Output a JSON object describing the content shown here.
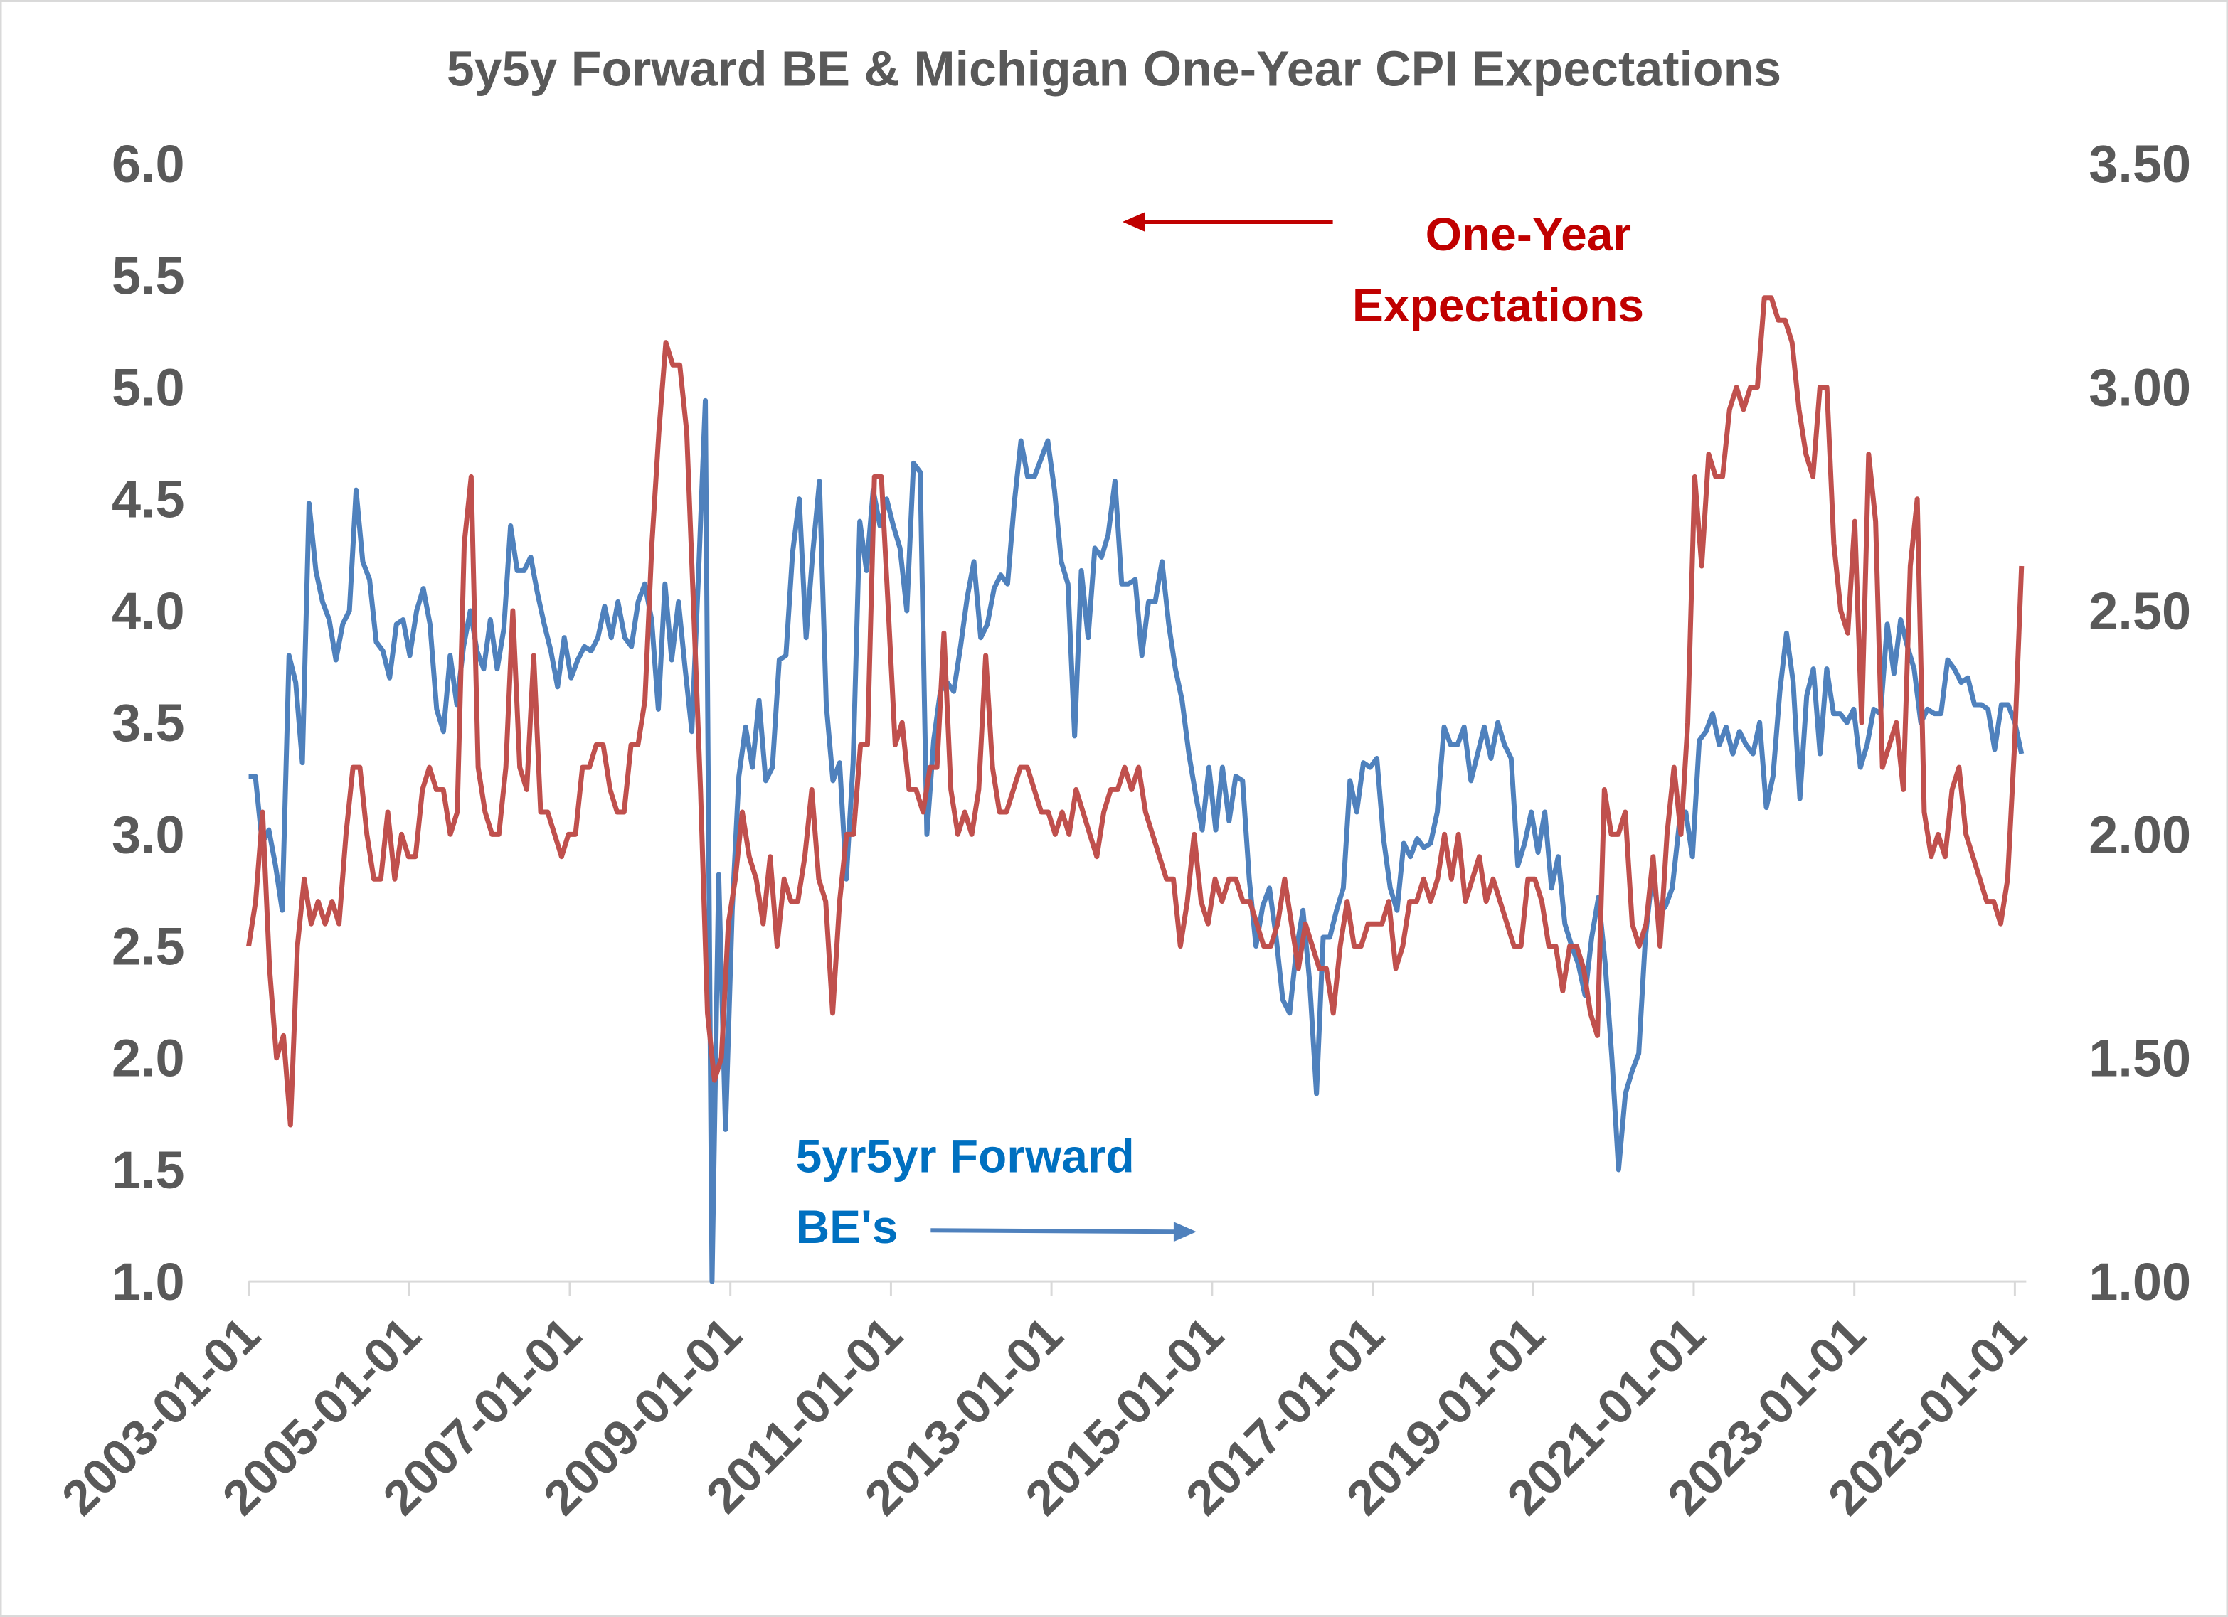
{
  "chart_data": {
    "type": "line",
    "title": "5y5y Forward BE & Michigan One-Year CPI Expectations",
    "x_start": "2003-01",
    "x_end": "2025-02",
    "frequency": "monthly (approx.)",
    "x_tick_labels": [
      "2003-01-01",
      "2005-01-01",
      "2007-01-01",
      "2009-01-01",
      "2011-01-01",
      "2013-01-01",
      "2015-01-01",
      "2017-01-01",
      "2019-01-01",
      "2021-01-01",
      "2023-01-01",
      "2025-01-01"
    ],
    "y_left": {
      "range": [
        1.0,
        6.0
      ],
      "ticks": [
        "1.0",
        "1.5",
        "2.0",
        "2.5",
        "3.0",
        "3.5",
        "4.0",
        "4.5",
        "5.0",
        "5.5",
        "6.0"
      ]
    },
    "y_right": {
      "range": [
        1.0,
        3.5
      ],
      "ticks": [
        "1.00",
        "1.50",
        "2.00",
        "2.50",
        "3.00",
        "3.50"
      ]
    },
    "grid": false,
    "annotations": [
      {
        "lines": [
          "One-Year",
          "Expectations"
        ],
        "color": "#C00000",
        "arrow": "left",
        "axis": "left"
      },
      {
        "lines": [
          "5yr5yr Forward",
          "BE's"
        ],
        "color": "#0070C0",
        "arrow": "right",
        "axis": "right"
      }
    ],
    "series": [
      {
        "name": "Michigan One-Year CPI Expectations",
        "axis": "left",
        "color": "#C0504D",
        "values": [
          2.5,
          2.7,
          3.1,
          2.4,
          2.0,
          2.1,
          1.7,
          2.5,
          2.8,
          2.6,
          2.7,
          2.6,
          2.7,
          2.6,
          3.0,
          3.3,
          3.3,
          3.0,
          2.8,
          2.8,
          3.1,
          2.8,
          3.0,
          2.9,
          2.9,
          3.2,
          3.3,
          3.2,
          3.2,
          3.0,
          3.1,
          4.3,
          4.6,
          3.3,
          3.1,
          3.0,
          3.0,
          3.3,
          4.0,
          3.3,
          3.2,
          3.8,
          3.1,
          3.1,
          3.0,
          2.9,
          3.0,
          3.0,
          3.3,
          3.3,
          3.4,
          3.4,
          3.2,
          3.1,
          3.1,
          3.4,
          3.4,
          3.6,
          4.3,
          4.8,
          5.2,
          5.1,
          5.1,
          4.8,
          4.0,
          3.2,
          2.2,
          1.9,
          2.0,
          2.6,
          2.8,
          3.1,
          2.9,
          2.8,
          2.6,
          2.9,
          2.5,
          2.8,
          2.7,
          2.7,
          2.9,
          3.2,
          2.8,
          2.7,
          2.2,
          2.7,
          3.0,
          3.0,
          3.4,
          3.4,
          4.6,
          4.6,
          4.0,
          3.4,
          3.5,
          3.2,
          3.2,
          3.1,
          3.3,
          3.3,
          3.9,
          3.2,
          3.0,
          3.1,
          3.0,
          3.2,
          3.8,
          3.3,
          3.1,
          3.1,
          3.2,
          3.3,
          3.3,
          3.2,
          3.1,
          3.1,
          3.0,
          3.1,
          3.0,
          3.2,
          3.1,
          3.0,
          2.9,
          3.1,
          3.2,
          3.2,
          3.3,
          3.2,
          3.3,
          3.1,
          3.0,
          2.9,
          2.8,
          2.8,
          2.5,
          2.7,
          3.0,
          2.7,
          2.6,
          2.8,
          2.7,
          2.8,
          2.8,
          2.7,
          2.7,
          2.6,
          2.5,
          2.5,
          2.6,
          2.8,
          2.6,
          2.4,
          2.6,
          2.5,
          2.4,
          2.4,
          2.2,
          2.5,
          2.7,
          2.5,
          2.5,
          2.6,
          2.6,
          2.6,
          2.7,
          2.4,
          2.5,
          2.7,
          2.7,
          2.8,
          2.7,
          2.8,
          3.0,
          2.8,
          3.0,
          2.7,
          2.8,
          2.9,
          2.7,
          2.8,
          2.7,
          2.6,
          2.5,
          2.5,
          2.8,
          2.8,
          2.7,
          2.5,
          2.5,
          2.3,
          2.5,
          2.5,
          2.4,
          2.2,
          2.1,
          3.2,
          3.0,
          3.0,
          3.1,
          2.6,
          2.5,
          2.6,
          2.9,
          2.5,
          3.0,
          3.3,
          3.0,
          3.5,
          4.6,
          4.2,
          4.7,
          4.6,
          4.6,
          4.9,
          5.0,
          4.9,
          5.0,
          5.0,
          5.4,
          5.4,
          5.3,
          5.3,
          5.2,
          4.9,
          4.7,
          4.6,
          5.0,
          5.0,
          4.3,
          4.0,
          3.9,
          4.4,
          3.5,
          4.7,
          4.4,
          3.3,
          3.4,
          3.5,
          3.2,
          4.2,
          4.5,
          3.1,
          2.9,
          3.0,
          2.9,
          3.2,
          3.3,
          3.0,
          2.9,
          2.8,
          2.7,
          2.7,
          2.6,
          2.8,
          3.4,
          4.2
        ]
      },
      {
        "name": "5yr5yr Forward Breakeven",
        "axis": "right",
        "color": "#4F81BD",
        "values": [
          2.13,
          2.13,
          1.98,
          2.01,
          1.93,
          1.83,
          2.4,
          2.34,
          2.16,
          2.74,
          2.59,
          2.52,
          2.48,
          2.39,
          2.47,
          2.5,
          2.77,
          2.61,
          2.57,
          2.43,
          2.41,
          2.35,
          2.47,
          2.48,
          2.4,
          2.5,
          2.55,
          2.47,
          2.28,
          2.23,
          2.4,
          2.29,
          2.42,
          2.5,
          2.41,
          2.37,
          2.48,
          2.37,
          2.46,
          2.69,
          2.59,
          2.59,
          2.62,
          2.54,
          2.47,
          2.41,
          2.33,
          2.44,
          2.35,
          2.39,
          2.42,
          2.41,
          2.44,
          2.51,
          2.44,
          2.52,
          2.44,
          2.42,
          2.52,
          2.56,
          2.48,
          2.28,
          2.56,
          2.39,
          2.52,
          2.37,
          2.23,
          2.59,
          2.97,
          1.0,
          1.91,
          1.34,
          1.83,
          2.13,
          2.24,
          2.15,
          2.3,
          2.12,
          2.15,
          2.39,
          2.4,
          2.63,
          2.75,
          2.44,
          2.63,
          2.79,
          2.29,
          2.12,
          2.16,
          1.9,
          2.16,
          2.7,
          2.59,
          2.77,
          2.69,
          2.75,
          2.69,
          2.64,
          2.5,
          2.83,
          2.81,
          2.0,
          2.21,
          2.32,
          2.34,
          2.32,
          2.42,
          2.53,
          2.61,
          2.44,
          2.47,
          2.55,
          2.58,
          2.56,
          2.74,
          2.88,
          2.8,
          2.8,
          2.84,
          2.88,
          2.77,
          2.61,
          2.56,
          2.22,
          2.59,
          2.44,
          2.64,
          2.62,
          2.67,
          2.79,
          2.56,
          2.56,
          2.57,
          2.4,
          2.52,
          2.52,
          2.61,
          2.47,
          2.37,
          2.3,
          2.18,
          2.09,
          2.01,
          2.15,
          2.01,
          2.15,
          2.03,
          2.13,
          2.12,
          1.9,
          1.75,
          1.84,
          1.88,
          1.77,
          1.63,
          1.6,
          1.74,
          1.83,
          1.67,
          1.42,
          1.77,
          1.77,
          1.83,
          1.88,
          2.12,
          2.05,
          2.16,
          2.15,
          2.17,
          1.99,
          1.88,
          1.83,
          1.98,
          1.95,
          1.99,
          1.97,
          1.98,
          2.05,
          2.24,
          2.2,
          2.2,
          2.24,
          2.12,
          2.18,
          2.24,
          2.17,
          2.25,
          2.2,
          2.17,
          1.93,
          1.98,
          2.05,
          1.96,
          2.05,
          1.88,
          1.95,
          1.8,
          1.75,
          1.71,
          1.64,
          1.77,
          1.86,
          1.71,
          1.5,
          1.25,
          1.42,
          1.47,
          1.51,
          1.77,
          1.91,
          1.82,
          1.84,
          1.88,
          2.02,
          2.05,
          1.95,
          2.21,
          2.23,
          2.27,
          2.2,
          2.24,
          2.18,
          2.23,
          2.2,
          2.18,
          2.25,
          2.06,
          2.13,
          2.32,
          2.45,
          2.34,
          2.08,
          2.31,
          2.37,
          2.18,
          2.37,
          2.27,
          2.27,
          2.25,
          2.28,
          2.15,
          2.2,
          2.28,
          2.27,
          2.47,
          2.36,
          2.48,
          2.42,
          2.37,
          2.25,
          2.28,
          2.27,
          2.27,
          2.39,
          2.37,
          2.34,
          2.35,
          2.29,
          2.29,
          2.28,
          2.19,
          2.29,
          2.29,
          2.25,
          2.18
        ]
      }
    ]
  }
}
